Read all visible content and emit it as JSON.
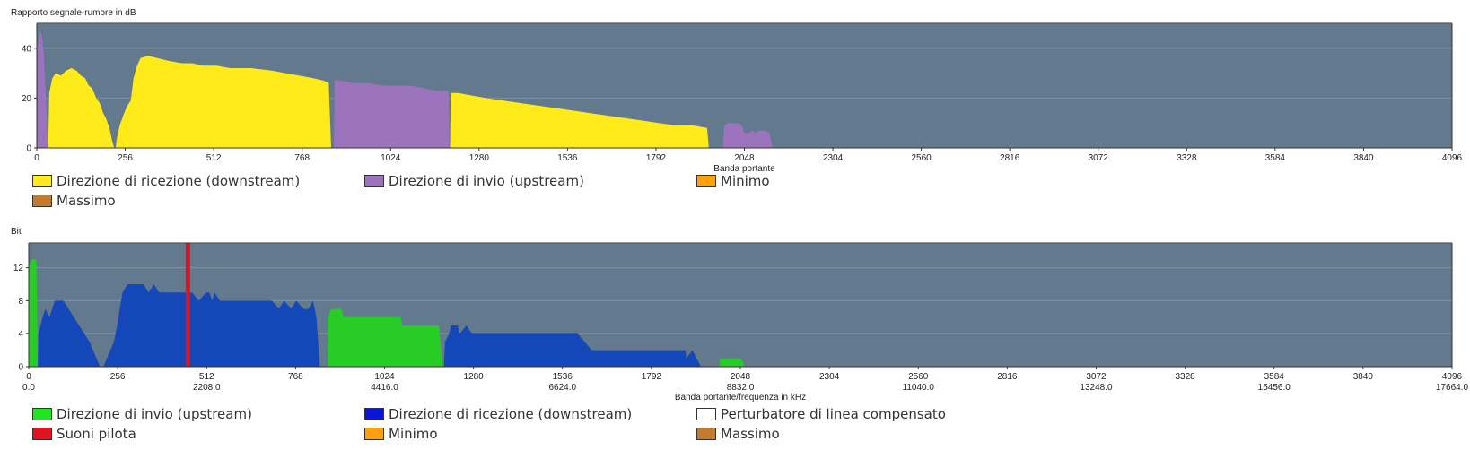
{
  "chart_data": [
    {
      "type": "area",
      "ylabel": "Rapporto segnale-rumore in dB",
      "xlabel": "Banda portante",
      "xlim": [
        0,
        4096
      ],
      "ylim": [
        0,
        50
      ],
      "yticks": [
        0,
        20,
        40
      ],
      "xticks": [
        "0",
        "256",
        "512",
        "768",
        "1024",
        "1280",
        "1536",
        "1792",
        "2048",
        "2304",
        "2560",
        "2816",
        "3072",
        "3328",
        "3584",
        "3840",
        "4096"
      ],
      "background": "#637a8e",
      "series": [
        {
          "name": "Direzione di ricezione (downstream)",
          "color": "#ffeb1a",
          "points": [
            [
              33,
              0
            ],
            [
              36,
              22
            ],
            [
              45,
              28
            ],
            [
              55,
              30
            ],
            [
              70,
              29
            ],
            [
              85,
              31
            ],
            [
              100,
              32
            ],
            [
              115,
              31
            ],
            [
              128,
              29
            ],
            [
              140,
              28
            ],
            [
              150,
              25
            ],
            [
              160,
              24
            ],
            [
              172,
              20
            ],
            [
              182,
              18
            ],
            [
              192,
              14
            ],
            [
              200,
              12
            ],
            [
              210,
              8
            ],
            [
              218,
              3
            ],
            [
              224,
              0
            ],
            [
              228,
              0
            ],
            [
              232,
              4
            ],
            [
              240,
              9
            ],
            [
              250,
              13
            ],
            [
              262,
              17
            ],
            [
              272,
              19
            ],
            [
              280,
              28
            ],
            [
              290,
              33
            ],
            [
              300,
              36
            ],
            [
              320,
              37
            ],
            [
              350,
              36
            ],
            [
              380,
              35
            ],
            [
              420,
              34
            ],
            [
              450,
              34
            ],
            [
              480,
              33
            ],
            [
              520,
              33
            ],
            [
              560,
              32
            ],
            [
              620,
              32
            ],
            [
              680,
              31
            ],
            [
              720,
              30
            ],
            [
              760,
              29
            ],
            [
              800,
              28
            ],
            [
              830,
              27
            ],
            [
              845,
              26
            ],
            [
              852,
              0
            ],
            [
              1196,
              0
            ],
            [
              1198,
              22
            ],
            [
              1220,
              22
            ],
            [
              1260,
              21
            ],
            [
              1300,
              20
            ],
            [
              1350,
              19
            ],
            [
              1400,
              18
            ],
            [
              1450,
              17
            ],
            [
              1500,
              16
            ],
            [
              1550,
              15
            ],
            [
              1600,
              14
            ],
            [
              1650,
              13
            ],
            [
              1700,
              12
            ],
            [
              1750,
              11
            ],
            [
              1800,
              10
            ],
            [
              1850,
              9
            ],
            [
              1900,
              9
            ],
            [
              1940,
              8
            ],
            [
              1945,
              0
            ]
          ]
        },
        {
          "name": "Direzione di invio (upstream)",
          "color": "#9c73bd",
          "points": [
            [
              2,
              0
            ],
            [
              3,
              40
            ],
            [
              8,
              46
            ],
            [
              14,
              46
            ],
            [
              20,
              38
            ],
            [
              28,
              15
            ],
            [
              32,
              0
            ],
            [
              860,
              0
            ],
            [
              862,
              27
            ],
            [
              880,
              27
            ],
            [
              920,
              26
            ],
            [
              960,
              26
            ],
            [
              1000,
              25
            ],
            [
              1040,
              25
            ],
            [
              1080,
              25
            ],
            [
              1120,
              24
            ],
            [
              1150,
              23
            ],
            [
              1192,
              23
            ],
            [
              1194,
              0
            ],
            [
              1986,
              0
            ],
            [
              1990,
              9
            ],
            [
              2000,
              10
            ],
            [
              2030,
              10
            ],
            [
              2040,
              9
            ],
            [
              2048,
              6
            ],
            [
              2060,
              6
            ],
            [
              2070,
              7
            ],
            [
              2080,
              6
            ],
            [
              2090,
              7
            ],
            [
              2110,
              7
            ],
            [
              2120,
              6
            ],
            [
              2130,
              0
            ]
          ]
        }
      ],
      "legend": [
        {
          "label": "Direzione di ricezione (downstream)",
          "color": "#ffeb1a"
        },
        {
          "label": "Direzione di invio (upstream)",
          "color": "#9c73bd"
        },
        {
          "label": "Minimo",
          "color": "#ff9f0a"
        },
        {
          "label": "Massimo",
          "color": "#c47a2c"
        }
      ]
    },
    {
      "type": "area",
      "ylabel": "Bit",
      "xlabel": "Banda portante/frequenza in kHz",
      "xlim": [
        0,
        4096
      ],
      "ylim": [
        0,
        15
      ],
      "yticks": [
        0,
        4,
        8,
        12
      ],
      "xticks": [
        "0",
        "256",
        "512",
        "768",
        "1024",
        "1280",
        "1536",
        "1792",
        "2048",
        "2304",
        "2560",
        "2816",
        "3072",
        "3328",
        "3584",
        "3840",
        "4096"
      ],
      "freq_ticks": [
        {
          "x": 0,
          "label": "0.0"
        },
        {
          "x": 512,
          "label": "2208.0"
        },
        {
          "x": 1024,
          "label": "4416.0"
        },
        {
          "x": 1536,
          "label": "6624.0"
        },
        {
          "x": 2048,
          "label": "8832.0"
        },
        {
          "x": 2560,
          "label": "11040.0"
        },
        {
          "x": 3072,
          "label": "13248.0"
        },
        {
          "x": 3584,
          "label": "15456.0"
        },
        {
          "x": 4096,
          "label": "17664.0"
        }
      ],
      "background": "#637a8e",
      "series": [
        {
          "name": "Direzione di invio (upstream)",
          "color": "#27cc27",
          "points": [
            [
              0,
              0
            ],
            [
              1,
              12
            ],
            [
              6,
              13
            ],
            [
              22,
              13
            ],
            [
              26,
              0
            ],
            [
              861,
              0
            ],
            [
              862,
              6
            ],
            [
              870,
              7
            ],
            [
              900,
              7
            ],
            [
              906,
              6
            ],
            [
              950,
              6
            ],
            [
              1000,
              6
            ],
            [
              1050,
              6
            ],
            [
              1070,
              6
            ],
            [
              1075,
              5
            ],
            [
              1100,
              5
            ],
            [
              1180,
              5
            ],
            [
              1192,
              0
            ],
            [
              1988,
              0
            ],
            [
              1990,
              1
            ],
            [
              2050,
              1
            ],
            [
              2060,
              0
            ]
          ]
        },
        {
          "name": "Direzione di ricezione (downstream)",
          "color": "#1447b8",
          "points": [
            [
              26,
              0
            ],
            [
              28,
              4
            ],
            [
              40,
              6
            ],
            [
              48,
              7
            ],
            [
              60,
              6
            ],
            [
              75,
              8
            ],
            [
              100,
              8
            ],
            [
              115,
              7
            ],
            [
              130,
              6
            ],
            [
              145,
              5
            ],
            [
              160,
              4
            ],
            [
              175,
              3
            ],
            [
              185,
              2
            ],
            [
              195,
              1
            ],
            [
              205,
              0
            ],
            [
              215,
              0
            ],
            [
              225,
              1
            ],
            [
              235,
              2
            ],
            [
              245,
              3
            ],
            [
              255,
              5
            ],
            [
              262,
              7
            ],
            [
              270,
              9
            ],
            [
              285,
              10
            ],
            [
              330,
              10
            ],
            [
              345,
              9
            ],
            [
              360,
              10
            ],
            [
              375,
              9
            ],
            [
              400,
              9
            ],
            [
              470,
              9
            ],
            [
              490,
              8
            ],
            [
              510,
              9
            ],
            [
              520,
              9
            ],
            [
              528,
              8
            ],
            [
              535,
              9
            ],
            [
              550,
              8
            ],
            [
              700,
              8
            ],
            [
              720,
              7
            ],
            [
              735,
              8
            ],
            [
              755,
              7
            ],
            [
              770,
              8
            ],
            [
              790,
              7
            ],
            [
              805,
              7
            ],
            [
              818,
              8
            ],
            [
              828,
              6
            ],
            [
              838,
              0
            ],
            [
              1195,
              0
            ],
            [
              1198,
              3
            ],
            [
              1210,
              4
            ],
            [
              1215,
              5
            ],
            [
              1235,
              5
            ],
            [
              1240,
              4
            ],
            [
              1260,
              5
            ],
            [
              1275,
              4
            ],
            [
              1300,
              4
            ],
            [
              1350,
              4
            ],
            [
              1400,
              4
            ],
            [
              1450,
              4
            ],
            [
              1500,
              4
            ],
            [
              1550,
              4
            ],
            [
              1580,
              4
            ],
            [
              1600,
              3
            ],
            [
              1620,
              2
            ],
            [
              1650,
              2
            ],
            [
              1700,
              2
            ],
            [
              1750,
              2
            ],
            [
              1800,
              2
            ],
            [
              1850,
              2
            ],
            [
              1890,
              2
            ],
            [
              1892,
              1
            ],
            [
              1910,
              2
            ],
            [
              1922,
              1
            ],
            [
              1935,
              0
            ]
          ]
        },
        {
          "name": "Suoni pilota",
          "color": "#e3121c",
          "bars": [
            {
              "x": 458,
              "value": 15
            }
          ]
        }
      ],
      "legend": [
        {
          "label": "Direzione di invio (upstream)",
          "color": "#1de61d"
        },
        {
          "label": "Direzione di ricezione (downstream)",
          "color": "#0b14d9"
        },
        {
          "label": "Perturbatore di linea compensato",
          "color": "#ffffff"
        },
        {
          "label": "Suoni pilota",
          "color": "#e3121c"
        },
        {
          "label": "Minimo",
          "color": "#ff9f0a"
        },
        {
          "label": "Massimo",
          "color": "#c47a2c"
        }
      ]
    }
  ]
}
